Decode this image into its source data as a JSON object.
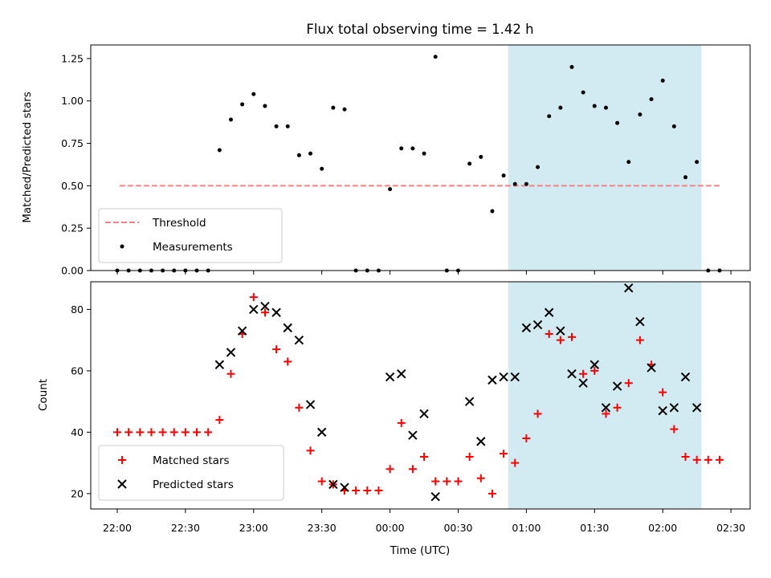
{
  "chart_data": [
    {
      "type": "scatter",
      "title": "Flux total observing time = 1.42 h",
      "xlabel": "",
      "ylabel": "Matched/Predicted stars",
      "ylim": [
        0,
        1.33
      ],
      "yticks": [
        "0.00",
        "0.25",
        "0.50",
        "0.75",
        "1.00",
        "1.25"
      ],
      "shaded_interval": {
        "from": "00:52",
        "to": "02:17",
        "color": "#add8e6"
      },
      "legend": {
        "position": "lower-left",
        "entries": [
          "Threshold",
          "Measurements"
        ]
      },
      "series": [
        {
          "name": "Threshold",
          "kind": "dashed-line",
          "color": "#ff7f7f",
          "x": [
            "22:01",
            "02:26"
          ],
          "y": [
            0.5,
            0.5
          ]
        },
        {
          "name": "Measurements",
          "kind": "dot",
          "color": "#000000",
          "x": [
            "22:00",
            "22:05",
            "22:10",
            "22:15",
            "22:20",
            "22:25",
            "22:30",
            "22:35",
            "22:40",
            "22:45",
            "22:50",
            "22:55",
            "23:00",
            "23:05",
            "23:10",
            "23:15",
            "23:20",
            "23:25",
            "23:30",
            "23:35",
            "23:40",
            "23:45",
            "23:50",
            "23:55",
            "00:00",
            "00:05",
            "00:10",
            "00:15",
            "00:20",
            "00:25",
            "00:30",
            "00:35",
            "00:40",
            "00:45",
            "00:50",
            "00:55",
            "01:00",
            "01:05",
            "01:10",
            "01:15",
            "01:20",
            "01:25",
            "01:30",
            "01:35",
            "01:40",
            "01:45",
            "01:50",
            "01:55",
            "02:00",
            "02:05",
            "02:10",
            "02:15",
            "02:20",
            "02:25"
          ],
          "y": [
            0,
            0,
            0,
            0,
            0,
            0,
            0,
            0,
            0,
            0.71,
            0.89,
            0.98,
            1.04,
            0.97,
            0.85,
            0.85,
            0.68,
            0.69,
            0.6,
            0.96,
            0.95,
            0,
            0,
            0,
            0.48,
            0.72,
            0.72,
            0.69,
            1.26,
            0,
            0,
            0.63,
            0.67,
            0.35,
            0.56,
            0.51,
            0.51,
            0.61,
            0.91,
            0.96,
            1.2,
            1.05,
            0.97,
            0.96,
            0.87,
            0.64,
            0.92,
            1.01,
            1.12,
            0.85,
            0.55,
            0.64,
            0,
            0
          ]
        }
      ]
    },
    {
      "type": "scatter",
      "title": "",
      "xlabel": "Time (UTC)",
      "ylabel": "Count",
      "ylim": [
        15,
        89
      ],
      "yticks": [
        "20",
        "40",
        "60",
        "80"
      ],
      "xticks": [
        "22:00",
        "22:30",
        "23:00",
        "23:30",
        "00:00",
        "00:30",
        "01:00",
        "01:30",
        "02:00",
        "02:30"
      ],
      "shaded_interval": {
        "from": "00:52",
        "to": "02:17",
        "color": "#add8e6"
      },
      "legend": {
        "position": "lower-left",
        "entries": [
          "Matched stars",
          "Predicted stars"
        ]
      },
      "series": [
        {
          "name": "Matched stars",
          "kind": "plus",
          "color": "#ff0000",
          "x": [
            "22:00",
            "22:05",
            "22:10",
            "22:15",
            "22:20",
            "22:25",
            "22:30",
            "22:35",
            "22:40",
            "22:45",
            "22:50",
            "22:55",
            "23:00",
            "23:05",
            "23:10",
            "23:15",
            "23:20",
            "23:25",
            "23:30",
            "23:35",
            "23:40",
            "23:45",
            "23:50",
            "23:55",
            "00:00",
            "00:05",
            "00:10",
            "00:15",
            "00:20",
            "00:25",
            "00:30",
            "00:35",
            "00:40",
            "00:45",
            "00:50",
            "00:55",
            "01:00",
            "01:05",
            "01:10",
            "01:15",
            "01:20",
            "01:25",
            "01:30",
            "01:35",
            "01:40",
            "01:45",
            "01:50",
            "01:55",
            "02:00",
            "02:05",
            "02:10",
            "02:15",
            "02:20",
            "02:25"
          ],
          "y": [
            40,
            40,
            40,
            40,
            40,
            40,
            40,
            40,
            40,
            44,
            59,
            72,
            84,
            79,
            67,
            63,
            48,
            34,
            24,
            23,
            21,
            21,
            21,
            21,
            28,
            43,
            28,
            32,
            24,
            24,
            24,
            32,
            25,
            20,
            33,
            30,
            38,
            46,
            72,
            70,
            71,
            59,
            60,
            46,
            48,
            56,
            70,
            62,
            53,
            41,
            32,
            31,
            31,
            31
          ]
        },
        {
          "name": "Predicted stars",
          "kind": "cross",
          "color": "#000000",
          "x": [
            "22:45",
            "22:50",
            "22:55",
            "23:00",
            "23:05",
            "23:10",
            "23:15",
            "23:20",
            "23:25",
            "23:30",
            "23:35",
            "23:40",
            "00:00",
            "00:05",
            "00:10",
            "00:15",
            "00:20",
            "00:35",
            "00:40",
            "00:45",
            "00:50",
            "00:55",
            "01:00",
            "01:05",
            "01:10",
            "01:15",
            "01:20",
            "01:25",
            "01:30",
            "01:35",
            "01:40",
            "01:45",
            "01:50",
            "01:55",
            "02:00",
            "02:05",
            "02:10",
            "02:15"
          ],
          "y": [
            62,
            66,
            73,
            80,
            81,
            79,
            74,
            70,
            49,
            40,
            23,
            22,
            58,
            59,
            39,
            46,
            19,
            50,
            37,
            57,
            58,
            58,
            74,
            75,
            79,
            73,
            59,
            56,
            62,
            48,
            55,
            87,
            76,
            61,
            47,
            48,
            58,
            48
          ]
        }
      ]
    }
  ]
}
